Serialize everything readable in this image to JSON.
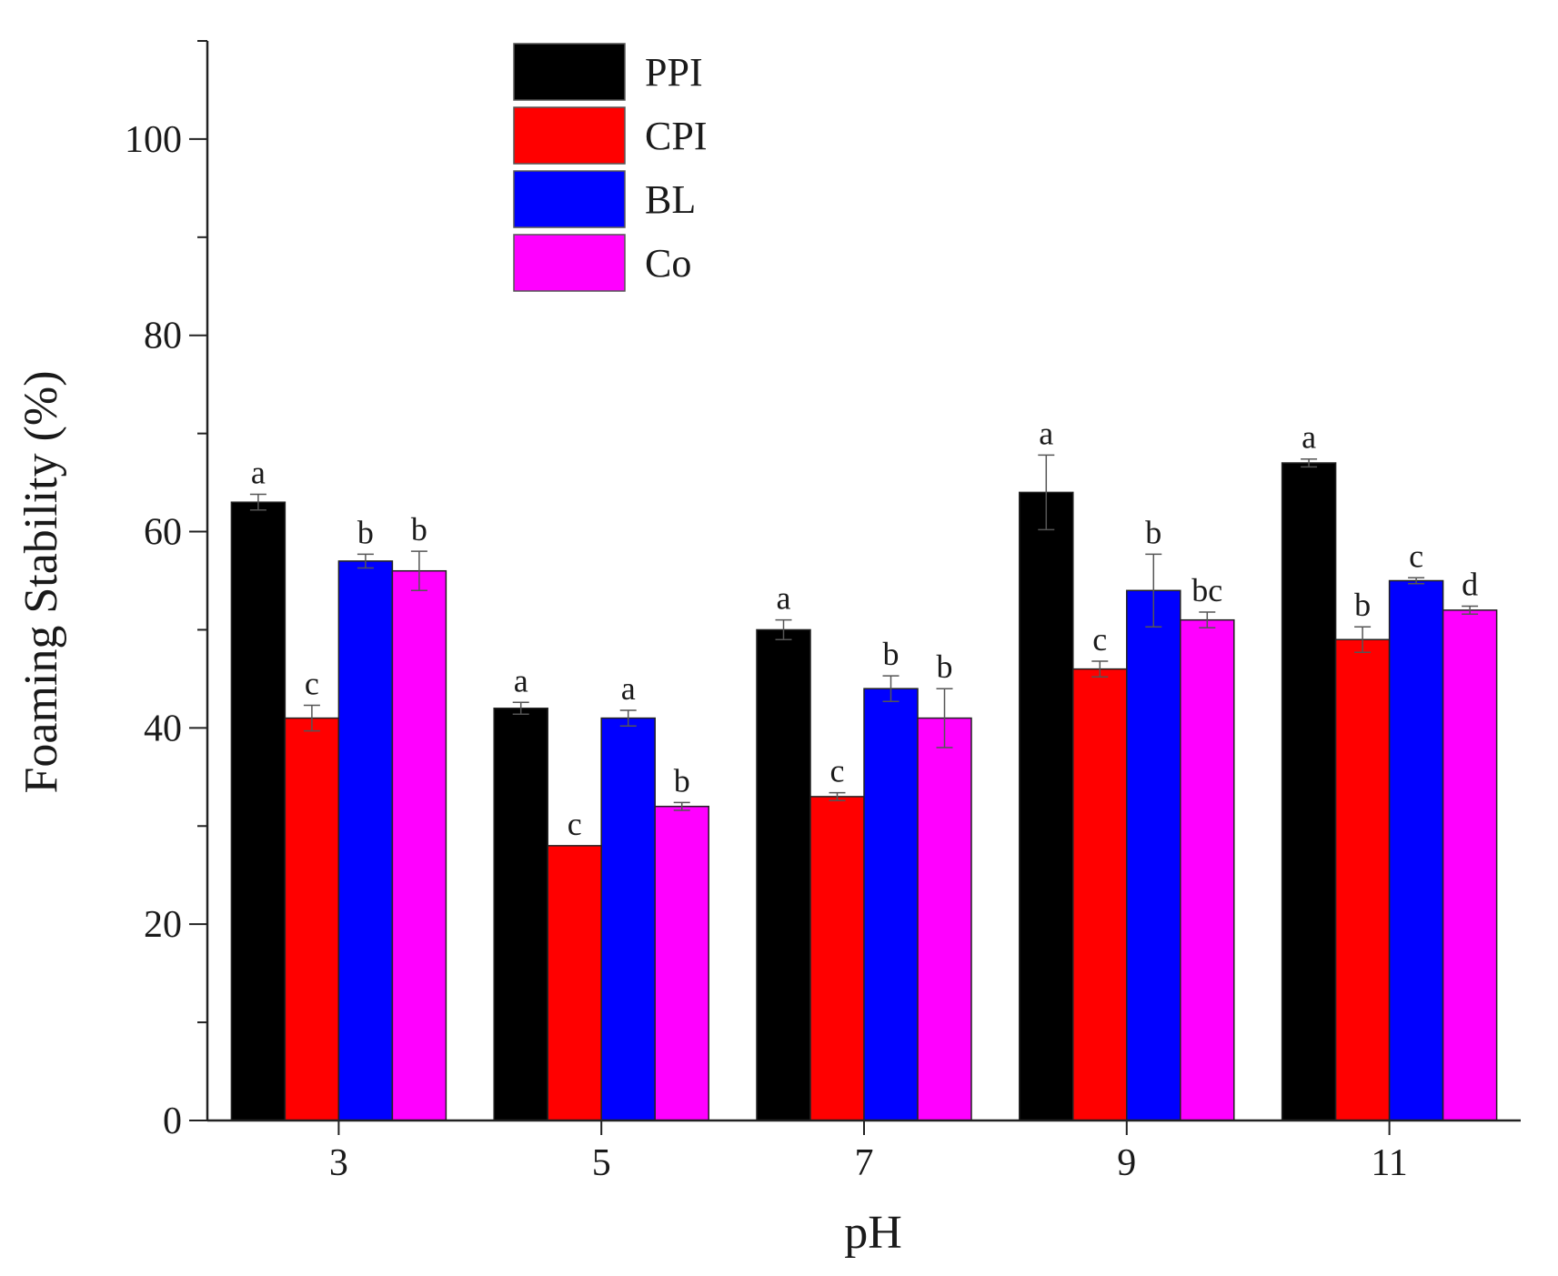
{
  "chart_data": {
    "type": "bar",
    "title": "",
    "xlabel": "pH",
    "ylabel": "Foaming Stability (%)",
    "ylim": [
      0,
      110
    ],
    "yticks": [
      0,
      20,
      40,
      60,
      80,
      100
    ],
    "categories": [
      "3",
      "5",
      "7",
      "9",
      "11"
    ],
    "legend_position": "top-left",
    "series": [
      {
        "name": "PPI",
        "color": "#000000",
        "values": [
          63,
          42,
          50,
          64,
          67
        ],
        "errors": [
          0.8,
          0.6,
          1.0,
          3.8,
          0.4
        ],
        "labels": [
          "a",
          "a",
          "a",
          "a",
          "a"
        ]
      },
      {
        "name": "CPI",
        "color": "#ff0000",
        "values": [
          41,
          28,
          33,
          46,
          49
        ],
        "errors": [
          1.3,
          0.0,
          0.4,
          0.8,
          1.3
        ],
        "labels": [
          "c",
          "c",
          "c",
          "c",
          "b"
        ]
      },
      {
        "name": "BL",
        "color": "#0000ff",
        "values": [
          57,
          41,
          44,
          54,
          55
        ],
        "errors": [
          0.7,
          0.8,
          1.3,
          3.7,
          0.3
        ],
        "labels": [
          "b",
          "a",
          "b",
          "b",
          "c"
        ]
      },
      {
        "name": "Co",
        "color": "#ff00ff",
        "values": [
          56,
          32,
          41,
          51,
          52
        ],
        "errors": [
          2.0,
          0.4,
          3.0,
          0.8,
          0.4
        ],
        "labels": [
          "b",
          "b",
          "b",
          "bc",
          "d"
        ]
      }
    ]
  }
}
